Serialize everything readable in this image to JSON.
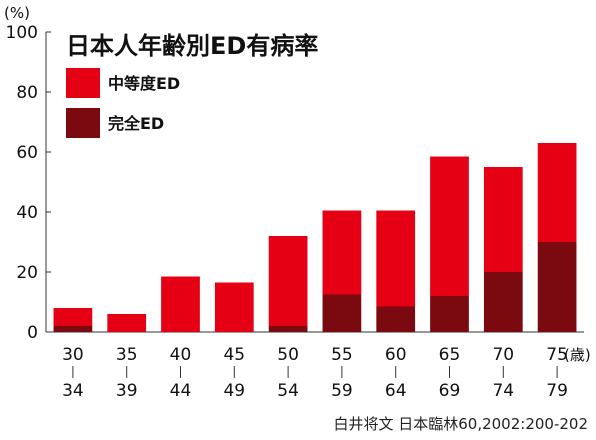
{
  "chart_data": {
    "type": "bar",
    "stacked": true,
    "title": "日本人年齢別ED有病率",
    "ylabel": "(%)",
    "xunit": "(歳)",
    "ylim": [
      0,
      100
    ],
    "yticks": [
      0,
      20,
      40,
      60,
      80,
      100
    ],
    "grid": false,
    "legend_position": "top-left",
    "categories": [
      {
        "from": "30",
        "to": "34"
      },
      {
        "from": "35",
        "to": "39"
      },
      {
        "from": "40",
        "to": "44"
      },
      {
        "from": "45",
        "to": "49"
      },
      {
        "from": "50",
        "to": "54"
      },
      {
        "from": "55",
        "to": "59"
      },
      {
        "from": "60",
        "to": "64"
      },
      {
        "from": "65",
        "to": "69"
      },
      {
        "from": "70",
        "to": "74"
      },
      {
        "from": "75",
        "to": "79"
      }
    ],
    "series": [
      {
        "name": "完全ED",
        "color": "#7a0a0f",
        "values": [
          2,
          0,
          0,
          0,
          2,
          12.5,
          8.5,
          12,
          20,
          30
        ]
      },
      {
        "name": "中等度ED",
        "color": "#e60013",
        "values": [
          6,
          6,
          18.5,
          16.5,
          30,
          28,
          32,
          46.5,
          35,
          33
        ]
      }
    ]
  },
  "source": "白井将文  日本臨林60,2002:200-202"
}
